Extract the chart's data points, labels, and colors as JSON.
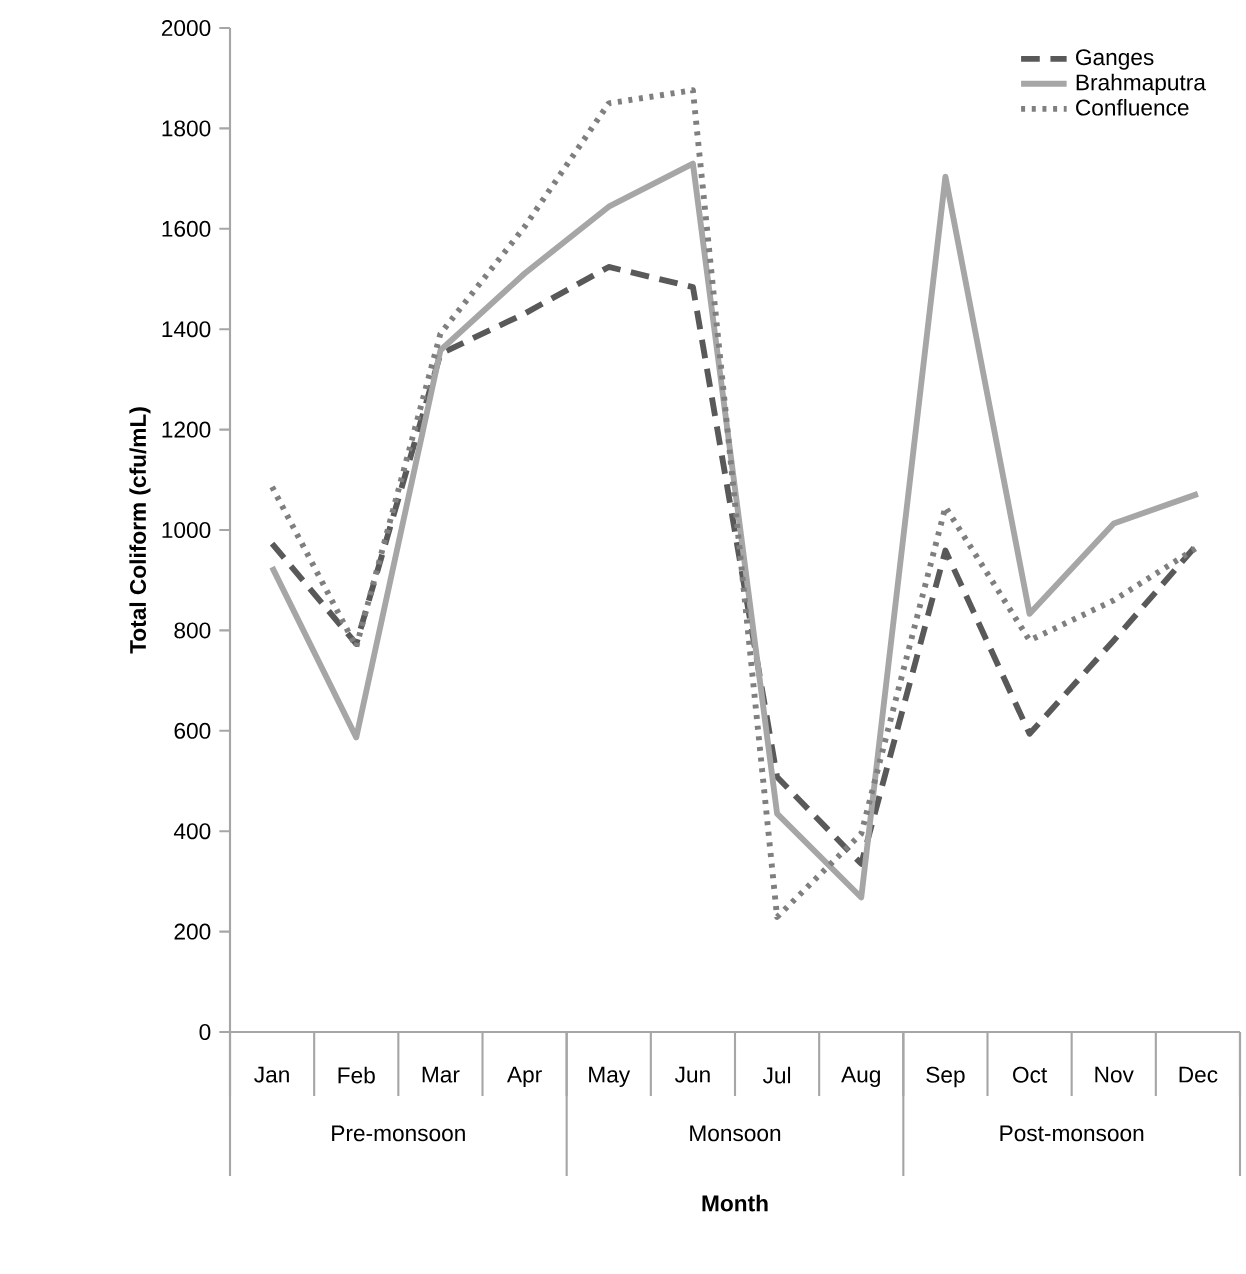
{
  "chart_data": {
    "type": "line",
    "xlabel": "Month",
    "ylabel": "Total Coliform (cfu/mL)",
    "categories": [
      "Jan",
      "Feb",
      "Mar",
      "Apr",
      "May",
      "Jun",
      "Jul",
      "Aug",
      "Sep",
      "Oct",
      "Nov",
      "Dec"
    ],
    "series": [
      {
        "name": "Ganges",
        "color": "#595959",
        "line_style": "dashed",
        "values": [
          973,
          773,
          1351,
          1431,
          1524,
          1484,
          508,
          335,
          959,
          594,
          780,
          973
        ]
      },
      {
        "name": "Brahmaputra",
        "color": "#a6a6a6",
        "line_style": "solid",
        "values": [
          926,
          587,
          1358,
          1511,
          1644,
          1730,
          435,
          268,
          1704,
          833,
          1013,
          1072
        ]
      },
      {
        "name": "Confluence",
        "color": "#7f7f7f",
        "line_style": "dotted",
        "values": [
          1086,
          767,
          1391,
          1604,
          1850,
          1876,
          229,
          395,
          1046,
          780,
          860,
          966
        ]
      }
    ],
    "annotations": [
      "Pre-monsoon",
      "Monsoon",
      "Post-monsoon"
    ],
    "ylim": [
      0,
      2000
    ],
    "yticks": [
      0,
      200,
      400,
      600,
      800,
      1000,
      1200,
      1400,
      1600,
      1800,
      2000
    ],
    "legend": "top right",
    "grid": false,
    "marker": "none"
  }
}
